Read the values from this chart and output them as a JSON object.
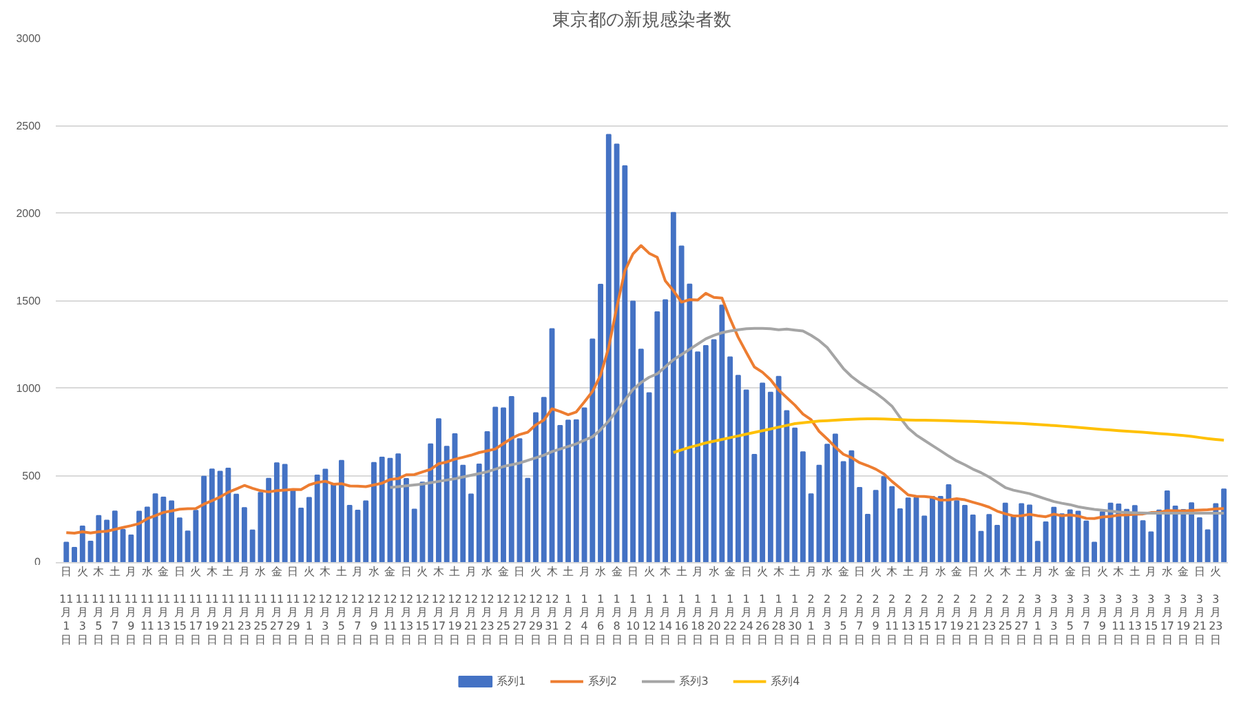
{
  "chart_data": {
    "type": "bar",
    "title": "東京都の新規感染者数",
    "categories": [
      "日 11月1日",
      null,
      "火 11月3日",
      null,
      "木 11月5日",
      null,
      "土 11月7日",
      null,
      "月 11月9日",
      null,
      "水 11月11日",
      null,
      "金 11月13日",
      null,
      "日 11月15日",
      null,
      "火 11月17日",
      null,
      "木 11月19日",
      null,
      "土 11月21日",
      null,
      "月 11月23日",
      null,
      "水 11月25日",
      null,
      "金 11月27日",
      null,
      "日 11月29日",
      null,
      "火 12月1日",
      null,
      "木 12月3日",
      null,
      "土 12月5日",
      null,
      "月 12月7日",
      null,
      "水 12月9日",
      null,
      "金 12月11日",
      null,
      "日 12月13日",
      null,
      "火 12月15日",
      null,
      "木 12月17日",
      null,
      "土 12月19日",
      null,
      "月 12月21日",
      null,
      "水 12月23日",
      null,
      "金 12月25日",
      null,
      "日 12月27日",
      null,
      "火 12月29日",
      null,
      "木 12月31日",
      null,
      "土 1月2日",
      null,
      "月 1月4日",
      null,
      "水 1月6日",
      null,
      "金 1月8日",
      null,
      "日 1月10日",
      null,
      "火 1月12日",
      null,
      "木 1月14日",
      null,
      "土 1月16日",
      null,
      "月 1月18日",
      null,
      "水 1月20日",
      null,
      "金 1月22日",
      null,
      "日 1月24日",
      null,
      "火 1月26日",
      null,
      "木 1月28日",
      null,
      "土 1月30日",
      null,
      "月 2月1日",
      null,
      "水 2月3日",
      null,
      "金 2月5日",
      null,
      "日 2月7日",
      null,
      "火 2月9日",
      null,
      "木 2月11日",
      null,
      "土 2月13日",
      null,
      "月 2月15日",
      null,
      "水 2月17日",
      null,
      "金 2月19日",
      null,
      "日 2月21日",
      null,
      "火 2月23日",
      null,
      "木 2月25日",
      null,
      "土 2月27日",
      null,
      "月 3月1日",
      null,
      "水 3月3日",
      null,
      "金 3月5日",
      null,
      "日 3月7日",
      null,
      "火 3月9日",
      null,
      "木 3月11日",
      null,
      "土 3月13日",
      null,
      "月 3月15日",
      null,
      "水 3月17日",
      null,
      "金 3月19日",
      null,
      "日 3月21日",
      null,
      "火 3月23日",
      null
    ],
    "series": [
      {
        "name": "系列1",
        "color": "#4472c4",
        "values": [
          116,
          87,
          209,
          122,
          269,
          242,
          294,
          189,
          157,
          293,
          317,
          393,
          374,
          352,
          255,
          180,
          298,
          493,
          534,
          522,
          539,
          391,
          314,
          186,
          401,
          481,
          570,
          561,
          418,
          311,
          372,
          500,
          533,
          449,
          584,
          327,
          299,
          352,
          572,
          602,
          595,
          621,
          480,
          305,
          460,
          678,
          822,
          664,
          736,
          556,
          392,
          563,
          748,
          888,
          884,
          949,
          708,
          481,
          856,
          944,
          1337,
          783,
          814,
          816,
          884,
          1278,
          1591,
          2447,
          2392,
          2268,
          1494,
          1219,
          970,
          1433,
          1502,
          2001,
          1809,
          1592,
          1204,
          1240,
          1274,
          1471,
          1175,
          1070,
          986,
          618,
          1026,
          973,
          1064,
          868,
          769,
          633,
          393,
          556,
          676,
          734,
          577,
          639,
          429,
          276,
          412,
          491,
          434,
          307,
          369,
          371,
          266,
          378,
          378,
          445,
          353,
          327,
          272,
          178,
          275,
          213,
          340,
          270,
          337,
          329,
          121,
          232,
          316,
          279,
          301,
          293,
          237,
          116,
          290,
          340,
          335,
          304,
          326,
          239,
          175,
          300,
          409,
          323,
          303,
          342,
          256,
          187,
          337,
          420
        ]
      },
      {
        "name": "系列2",
        "type": "line",
        "color": "#ed7d31",
        "values": [
          172,
          169,
          177,
          170,
          177,
          180,
          191,
          202,
          212,
          224,
          252,
          269,
          288,
          296,
          306,
          309,
          310,
          335,
          355,
          376,
          403,
          422,
          442,
          426,
          412,
          405,
          412,
          415,
          419,
          418,
          445,
          459,
          466,
          449,
          452,
          439,
          438,
          435,
          445,
          455,
          476,
          481,
          503,
          504,
          519,
          534,
          566,
          576,
          592,
          603,
          615,
          630,
          640,
          650,
          681,
          711,
          733,
          746,
          788,
          816,
          880,
          865,
          846,
          862,
          919,
          979,
          1072,
          1230,
          1460,
          1668,
          1765,
          1813,
          1769,
          1746,
          1611,
          1555,
          1490,
          1504,
          1502,
          1540,
          1517,
          1513,
          1395,
          1289,
          1203,
          1119,
          1089,
          1046,
          987,
          944,
          901,
          850,
          818,
          751,
          708,
          661,
          620,
          601,
          572,
          555,
          535,
          508,
          465,
          427,
          388,
          380,
          379,
          374,
          358,
          359,
          366,
          360,
          346,
          333,
          318,
          295,
          280,
          268,
          269,
          277,
          269,
          263,
          278,
          269,
          274,
          267,
          254,
          253,
          262,
          265,
          273,
          274,
          278,
          279,
          287,
          288,
          298,
          297,
          296,
          299,
          301,
          303,
          308,
          310
        ]
      },
      {
        "name": "系列3",
        "type": "line",
        "color": "#a5a5a5",
        "values": [
          null,
          null,
          null,
          null,
          null,
          null,
          null,
          null,
          null,
          null,
          null,
          null,
          null,
          null,
          null,
          null,
          null,
          null,
          null,
          null,
          null,
          null,
          null,
          null,
          null,
          null,
          null,
          null,
          null,
          null,
          null,
          null,
          null,
          null,
          null,
          null,
          null,
          null,
          null,
          null,
          430,
          435,
          440,
          445,
          450,
          458,
          465,
          473,
          480,
          490,
          500,
          510,
          520,
          535,
          550,
          560,
          570,
          585,
          600,
          615,
          635,
          650,
          665,
          680,
          700,
          720,
          760,
          810,
          870,
          930,
          990,
          1030,
          1060,
          1080,
          1120,
          1160,
          1190,
          1220,
          1250,
          1280,
          1300,
          1315,
          1325,
          1332,
          1338,
          1340,
          1340,
          1338,
          1332,
          1336,
          1330,
          1325,
          1300,
          1270,
          1230,
          1170,
          1110,
          1065,
          1030,
          1000,
          970,
          935,
          895,
          830,
          770,
          730,
          700,
          670,
          640,
          610,
          582,
          560,
          535,
          515,
          490,
          460,
          430,
          415,
          405,
          395,
          380,
          365,
          350,
          340,
          332,
          320,
          312,
          305,
          300,
          295,
          290,
          287,
          285,
          284,
          283,
          283,
          283,
          283,
          283,
          283,
          283,
          283,
          283,
          283
        ]
      },
      {
        "name": "系列4",
        "type": "line",
        "color": "#ffc000",
        "values": [
          null,
          null,
          null,
          null,
          null,
          null,
          null,
          null,
          null,
          null,
          null,
          null,
          null,
          null,
          null,
          null,
          null,
          null,
          null,
          null,
          null,
          null,
          null,
          null,
          null,
          null,
          null,
          null,
          null,
          null,
          null,
          null,
          null,
          null,
          null,
          null,
          null,
          null,
          null,
          null,
          null,
          null,
          null,
          null,
          null,
          null,
          null,
          null,
          null,
          null,
          null,
          null,
          null,
          null,
          null,
          null,
          null,
          null,
          null,
          null,
          null,
          null,
          null,
          null,
          null,
          null,
          null,
          null,
          null,
          null,
          null,
          null,
          null,
          null,
          null,
          630,
          645,
          660,
          672,
          685,
          695,
          705,
          715,
          725,
          735,
          745,
          755,
          765,
          775,
          785,
          795,
          800,
          805,
          810,
          812,
          815,
          818,
          820,
          822,
          823,
          823,
          822,
          820,
          818,
          816,
          815,
          815,
          814,
          813,
          812,
          810,
          809,
          808,
          806,
          804,
          802,
          800,
          798,
          796,
          793,
          790,
          787,
          784,
          781,
          778,
          774,
          770,
          766,
          762,
          759,
          755,
          752,
          749,
          746,
          742,
          738,
          735,
          731,
          727,
          722,
          716,
          710,
          705,
          701
        ]
      }
    ],
    "ylim": [
      0,
      3000
    ],
    "yticks": [
      0,
      500,
      1000,
      1500,
      2000,
      2500,
      3000
    ],
    "grid": "y",
    "legend": "bottom"
  }
}
